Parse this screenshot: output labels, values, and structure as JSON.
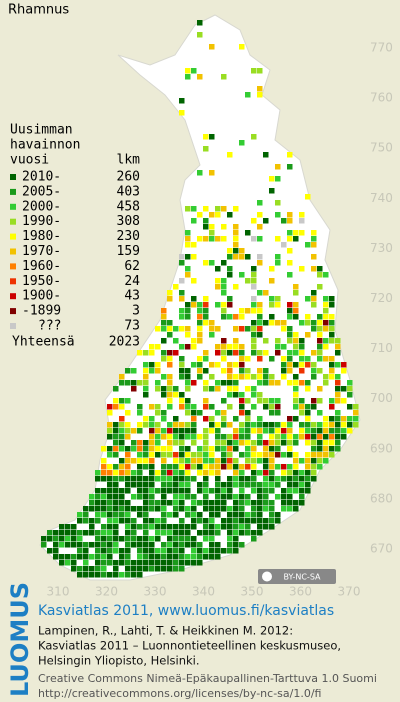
{
  "title": "Rhamnus",
  "legend": {
    "header": [
      "Uusimman",
      "havainnon",
      "vuosi"
    ],
    "count_header": "lkm",
    "entries": [
      {
        "label": "2010-",
        "count": "260",
        "color": "#006400"
      },
      {
        "label": "2005-",
        "count": "403",
        "color": "#1a9a1a"
      },
      {
        "label": "2000-",
        "count": "458",
        "color": "#33cc33"
      },
      {
        "label": "1990-",
        "count": "308",
        "color": "#99dd22"
      },
      {
        "label": "1980-",
        "count": "230",
        "color": "#ffff00"
      },
      {
        "label": "1970-",
        "count": "159",
        "color": "#f2c200"
      },
      {
        "label": "1960-",
        "count": "62",
        "color": "#ff8000"
      },
      {
        "label": "1950-",
        "count": "24",
        "color": "#ee3300"
      },
      {
        "label": "1900-",
        "count": "43",
        "color": "#cc0000"
      },
      {
        "label": "-1899",
        "count": "3",
        "color": "#800000"
      },
      {
        "label": "???",
        "count": "73",
        "color": "#c8c8c8"
      }
    ],
    "total_label": "Yhteensä",
    "total": "2023"
  },
  "grid_labels": {
    "north": [
      "770",
      "760",
      "750",
      "740",
      "730",
      "720",
      "710",
      "700",
      "690",
      "680",
      "670"
    ],
    "east": [
      "310",
      "320",
      "330",
      "340",
      "350",
      "360",
      "370"
    ]
  },
  "license_badge": "BY-NC-SA",
  "credits": {
    "logo": "LUOMUS",
    "headline": "Kasviatlas 2011, www.luomus.fi/kasviatlas",
    "citation": [
      "Lampinen, R., Lahti, T. & Heikkinen M. 2012:",
      "Kasviatlas 2011 – Luonnontieteellinen keskusmuseo,",
      "Helsingin Yliopisto, Helsinki."
    ],
    "license": [
      "Creative Commons Nimeä-Epäkaupallinen-Tarttuva 1.0 Suomi",
      "http://creativecommons.org/licenses/by-nc-sa/1.0/fi"
    ]
  }
}
